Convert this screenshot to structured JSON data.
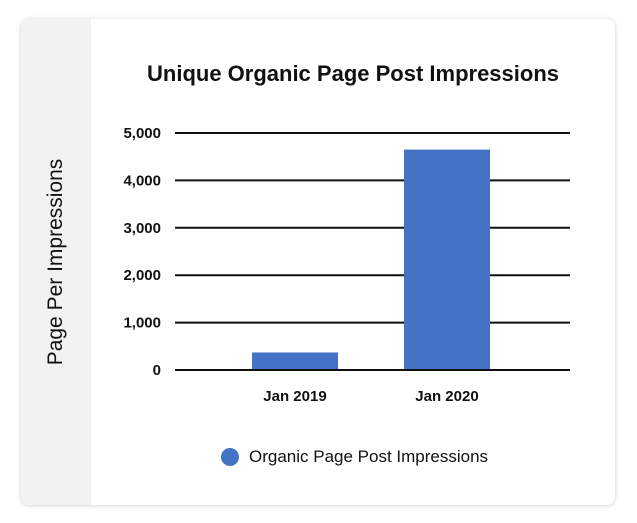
{
  "chart_data": {
    "type": "bar",
    "title": "Unique Organic Page Post Impressions",
    "xlabel": "",
    "ylabel": "Page Per Impressions",
    "categories": [
      "Jan 2019",
      "Jan 2020"
    ],
    "series": [
      {
        "name": "Organic Page Post Impressions",
        "values": [
          370,
          4650
        ],
        "color": "#4472c4"
      }
    ],
    "ylim": [
      0,
      5000
    ],
    "yticks": [
      0,
      1000,
      2000,
      3000,
      4000,
      5000
    ],
    "ytick_labels": [
      "0",
      "1,000",
      "2,000",
      "3,000",
      "4,000",
      "5,000"
    ],
    "grid": true,
    "legend_position": "bottom"
  }
}
